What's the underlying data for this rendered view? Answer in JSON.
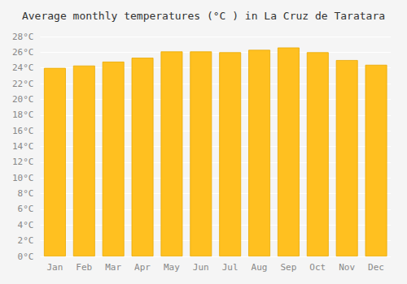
{
  "chart_data": {
    "type": "bar",
    "title": "Average monthly temperatures (°C ) in La Cruz de Taratara",
    "categories": [
      "Jan",
      "Feb",
      "Mar",
      "Apr",
      "May",
      "Jun",
      "Jul",
      "Aug",
      "Sep",
      "Oct",
      "Nov",
      "Dec"
    ],
    "values": [
      24.0,
      24.3,
      24.8,
      25.3,
      26.1,
      26.1,
      26.0,
      26.3,
      26.6,
      26.0,
      25.0,
      24.4
    ],
    "color": "#FFC020",
    "ylim": [
      0,
      28
    ],
    "yticks": [
      {
        "value": 0,
        "label": "0°C"
      },
      {
        "value": 2,
        "label": "2°C"
      },
      {
        "value": 4,
        "label": "4°C"
      },
      {
        "value": 6,
        "label": "6°C"
      },
      {
        "value": 8,
        "label": "8°C"
      },
      {
        "value": 10,
        "label": "10°C"
      },
      {
        "value": 12,
        "label": "12°C"
      },
      {
        "value": 14,
        "label": "14°C"
      },
      {
        "value": 16,
        "label": "16°C"
      },
      {
        "value": 18,
        "label": "18°C"
      },
      {
        "value": 20,
        "label": "20°C"
      },
      {
        "value": 22,
        "label": "22°C"
      },
      {
        "value": 24,
        "label": "24°C"
      },
      {
        "value": 26,
        "label": "26°C"
      },
      {
        "value": 28,
        "label": "28°C"
      }
    ],
    "grid": true
  }
}
